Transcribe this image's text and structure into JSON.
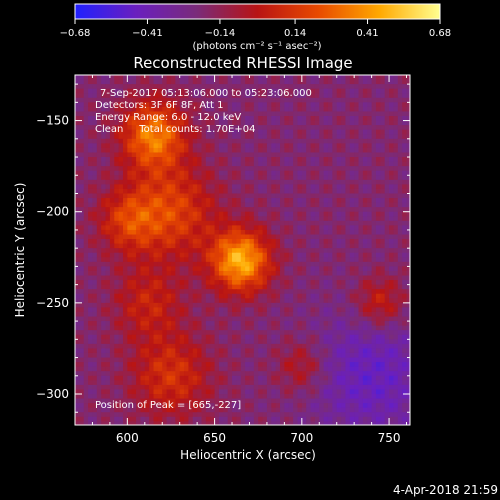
{
  "chart_data": {
    "type": "heatmap",
    "title": "Reconstructed RHESSI Image",
    "xlabel": "Heliocentric X (arcsec)",
    "ylabel": "Heliocentric Y (arcsec)",
    "xlim": [
      570,
      762
    ],
    "ylim": [
      -317,
      -125
    ],
    "x_ticks": [
      600,
      650,
      700,
      750
    ],
    "y_ticks": [
      -150,
      -200,
      -250,
      -300
    ],
    "colorbar": {
      "min": -0.68,
      "max": 0.68,
      "tick_values": [
        -0.68,
        -0.41,
        -0.14,
        0.14,
        0.41,
        0.68
      ],
      "tick_labels": [
        "−0.68",
        "−0.41",
        "−0.14",
        "0.14",
        "0.41",
        "0.68"
      ],
      "units": "(photons cm⁻² s⁻¹ asec⁻²)",
      "colors": [
        "#2020ff",
        "#6a1fbf",
        "#7a2b7a",
        "#b81414",
        "#e84a00",
        "#ffa800",
        "#ffff90"
      ]
    },
    "annotations": {
      "time_range": "7-Sep-2017 05:13:06.000 to 05:23:06.000",
      "detectors": "Detectors: 3F 6F 8F, Att 1",
      "energy_range": "Energy Range: 6.0 - 12.0 keV",
      "method_counts": "Clean     Total counts: 1.70E+04",
      "peak": "Position of Peak = [665,-227]"
    },
    "peak_position": [
      665,
      -227
    ],
    "peak_value": 0.68,
    "sources": [
      {
        "x": 665,
        "y": -227,
        "amplitude": 0.68,
        "sigma_arcsec": 12
      },
      {
        "x": 615,
        "y": -158,
        "amplitude": 0.55,
        "sigma_arcsec": 13
      },
      {
        "x": 625,
        "y": -200,
        "amplitude": 0.38,
        "sigma_arcsec": 18
      },
      {
        "x": 600,
        "y": -205,
        "amplitude": 0.3,
        "sigma_arcsec": 12
      },
      {
        "x": 625,
        "y": -290,
        "amplitude": 0.32,
        "sigma_arcsec": 16
      },
      {
        "x": 612,
        "y": -250,
        "amplitude": 0.25,
        "sigma_arcsec": 14
      },
      {
        "x": 745,
        "y": -250,
        "amplitude": 0.28,
        "sigma_arcsec": 10
      },
      {
        "x": 700,
        "y": -285,
        "amplitude": 0.22,
        "sigma_arcsec": 10
      }
    ],
    "background_value": -0.2,
    "low_region": {
      "x": 740,
      "y": -290,
      "value": -0.45,
      "sigma_arcsec": 25
    },
    "grid": false
  },
  "timestamp": "4-Apr-2018 21:59"
}
